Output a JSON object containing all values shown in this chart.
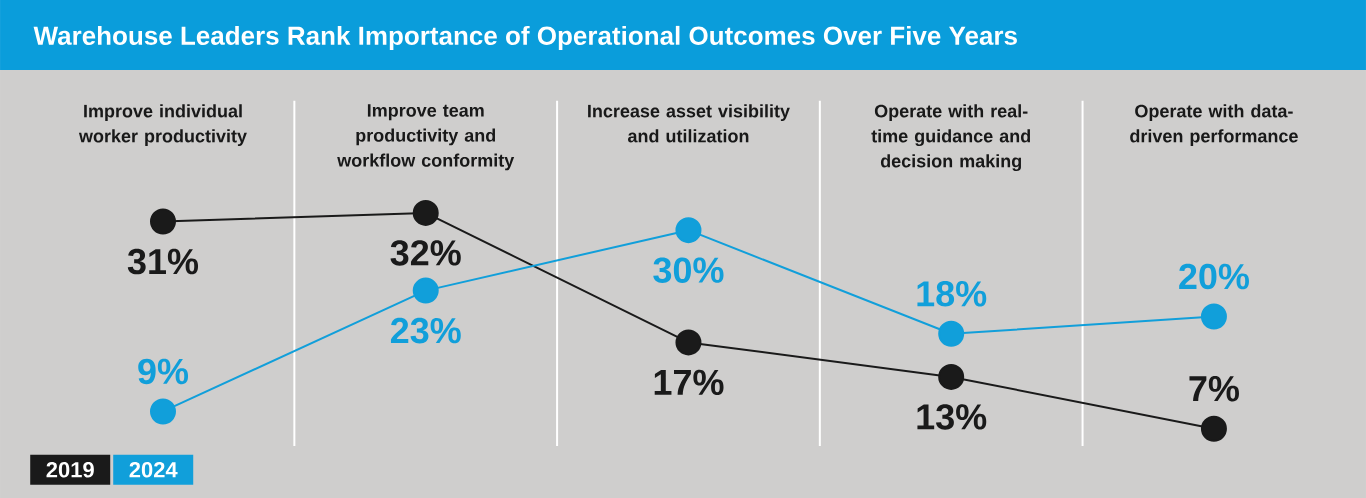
{
  "chart_data": {
    "type": "line",
    "title": "Warehouse Leaders Rank Importance of Operational Outcomes Over Five Years",
    "categories": [
      "Improve individual worker productivity",
      "Improve team productivity and workflow conformity",
      "Increase asset visibility and utilization",
      "Operate with real-time guidance and decision making",
      "Operate with data-driven performance"
    ],
    "series": [
      {
        "name": "2019",
        "color": "#1a1a1a",
        "values": [
          31,
          32,
          17,
          13,
          7
        ],
        "value_labels": [
          "31%",
          "32%",
          "17%",
          "13%",
          "7%"
        ]
      },
      {
        "name": "2024",
        "color": "#119fda",
        "values": [
          9,
          23,
          30,
          18,
          20
        ],
        "value_labels": [
          "9%",
          "23%",
          "30%",
          "18%",
          "20%"
        ]
      }
    ],
    "ylim": [
      5,
      45
    ],
    "tick_labels": false,
    "legend": "bottom left",
    "marker": "circle",
    "line_style": "solid"
  }
}
